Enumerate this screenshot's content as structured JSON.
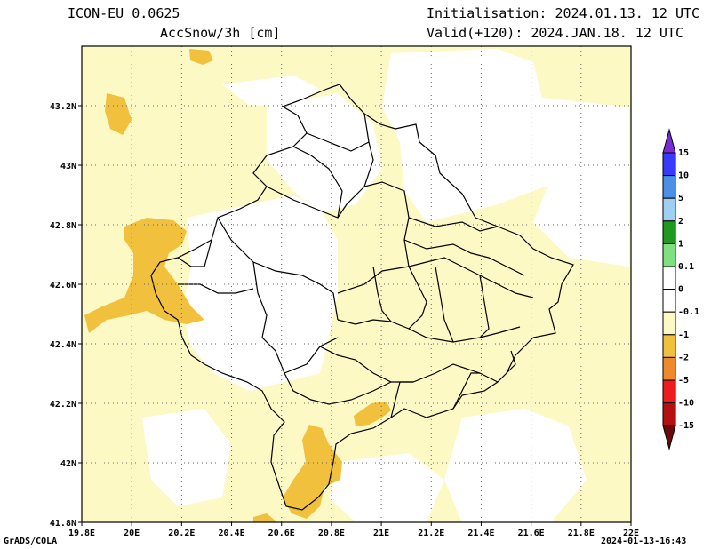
{
  "header": {
    "model": "ICON-EU 0.0625",
    "variable": "AccSnow/3h [cm]",
    "init": "Initialisation: 2024.01.13. 12 UTC",
    "valid": "Valid(+120): 2024.JAN.18. 12 UTC"
  },
  "footer": {
    "left": "GrADS/COLA",
    "right": "2024-01-13-16:43"
  },
  "axes": {
    "x_ticks": [
      "19.8E",
      "20E",
      "20.2E",
      "20.4E",
      "20.6E",
      "20.8E",
      "21E",
      "21.2E",
      "21.4E",
      "21.6E",
      "21.8E",
      "22E"
    ],
    "y_ticks": [
      "41.8N",
      "42N",
      "42.2N",
      "42.4N",
      "42.6N",
      "42.8N",
      "43N",
      "43.2N"
    ],
    "lon_range": [
      19.8,
      22.0
    ],
    "lat_range": [
      41.8,
      43.4
    ],
    "grid": true
  },
  "colorbar": {
    "labels": [
      "15",
      "10",
      "5",
      "2",
      "1",
      "0.1",
      "0",
      "-0.1",
      "-1",
      "-2",
      "-5",
      "-10",
      "-15"
    ],
    "colors": [
      "#7b2bd6",
      "#3a3aff",
      "#4a90e8",
      "#9fcff2",
      "#1e9a1e",
      "#7fe07f",
      "#ffffff",
      "#ffffff",
      "#fdf9c4",
      "#f1c03c",
      "#ee8a2c",
      "#ee1c1c",
      "#b41010",
      "#6b0a0a"
    ]
  },
  "map": {
    "background_color": "#fdf9c4",
    "white_color": "#ffffff",
    "orange_color": "#f1c03c"
  }
}
